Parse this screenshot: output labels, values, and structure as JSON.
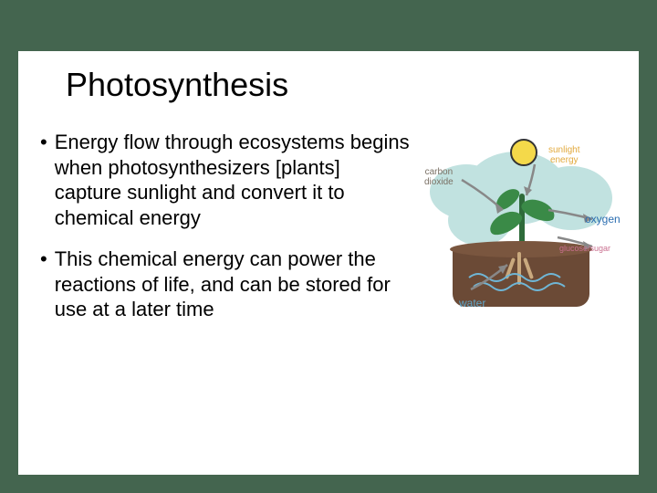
{
  "slide": {
    "title": "Photosynthesis",
    "bullets": [
      "Energy flow through ecosystems begins when photosynthesizers [plants] capture sunlight and convert it to chemical energy",
      "This chemical energy can power the reactions of life, and can be stored for use at a later time"
    ]
  },
  "diagram": {
    "type": "infographic",
    "background_color": "#ffffff",
    "labels": {
      "carbon_dioxide": {
        "text": "carbon\ndioxide",
        "color": "#7a7064"
      },
      "sunlight_energy": {
        "text": "sunlight\nenergy",
        "color": "#e2a93c"
      },
      "oxygen": {
        "text": "oxygen",
        "color": "#2a6db0"
      },
      "glucose_sugar": {
        "text": "glucose/sugar",
        "color": "#c96f8f"
      },
      "water": {
        "text": "water",
        "color": "#5fa6c9"
      }
    },
    "colors": {
      "cloud": "#c1e2e0",
      "soil": "#6b4a36",
      "soil_top": "#7a563f",
      "stem": "#2e6b3a",
      "leaf": "#3a8a47",
      "sun_fill": "#f4d94a",
      "sun_stroke": "#333333",
      "root": "#c9a97e",
      "water_stroke": "#6fb6d6"
    },
    "label_fontsize": 10,
    "label_font": "Comic Sans MS"
  },
  "theme": {
    "slide_bg": "#44654f",
    "panel_bg": "#ffffff",
    "title_color": "#000000",
    "title_fontsize": 36,
    "body_color": "#000000",
    "body_fontsize": 22
  }
}
